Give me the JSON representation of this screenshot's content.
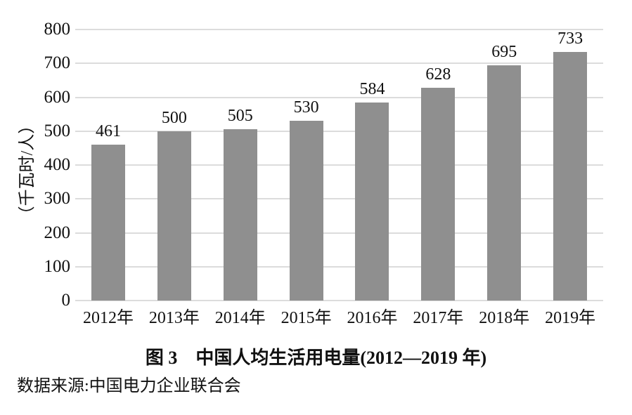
{
  "chart_data": {
    "type": "bar",
    "categories": [
      "2012年",
      "2013年",
      "2014年",
      "2015年",
      "2016年",
      "2017年",
      "2018年",
      "2019年"
    ],
    "values": [
      461,
      500,
      505,
      530,
      584,
      628,
      695,
      733
    ],
    "title": "图 3　中国人均生活用电量(2012—2019 年)",
    "xlabel": "",
    "ylabel": "（千瓦时/人）",
    "ylim": [
      0,
      800
    ],
    "y_ticks": [
      0,
      100,
      200,
      300,
      400,
      500,
      600,
      700,
      800
    ],
    "grid": "horizontal",
    "legend": "none",
    "value_labels_shown": true,
    "bar_color": "#8f8f8f",
    "gridline_color": "#dcdcdc",
    "text_color": "#111111"
  },
  "caption": "图 3　中国人均生活用电量(2012—2019 年)",
  "source": "数据来源:中国电力企业联合会",
  "y_axis_unit": "（千瓦时/人）"
}
